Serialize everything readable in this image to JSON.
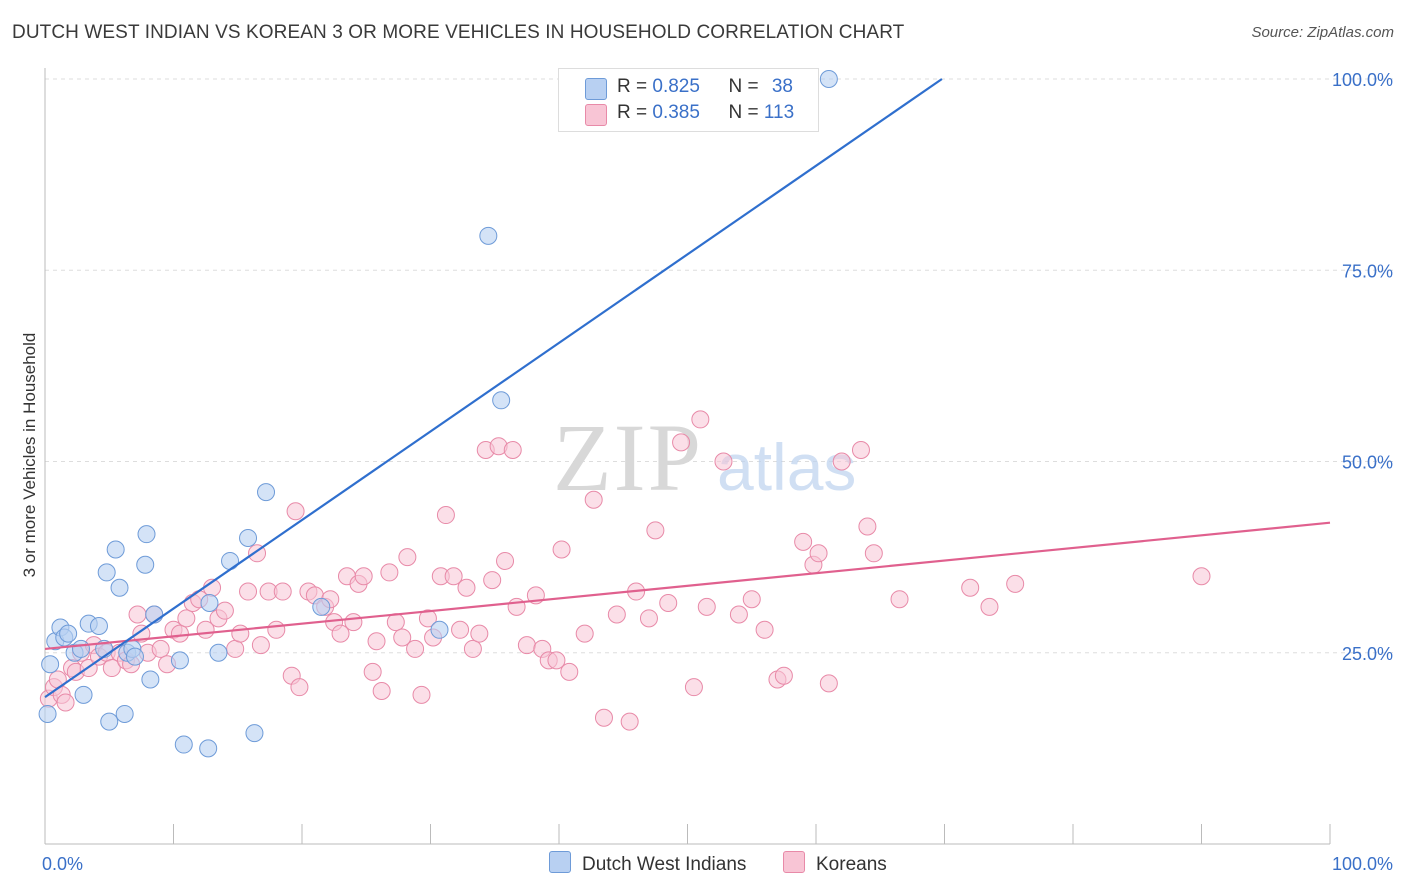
{
  "title": "DUTCH WEST INDIAN VS KOREAN 3 OR MORE VEHICLES IN HOUSEHOLD CORRELATION CHART",
  "source": "Source: ZipAtlas.com",
  "watermark": {
    "zip": "ZIP",
    "atlas": "atlas"
  },
  "colors": {
    "blue_fill": "#b8d0f2",
    "blue_stroke": "#6e9bd8",
    "blue_line": "#2f6fce",
    "pink_fill": "#f8c5d5",
    "pink_stroke": "#e88aa8",
    "pink_line": "#e0608e",
    "axis_text": "#3a70c8",
    "grid": "#dddddd"
  },
  "legend": {
    "rows": [
      {
        "r_label": "R = ",
        "r_value": "0.825",
        "n_label": "N = ",
        "n_value": "38"
      },
      {
        "r_label": "R = ",
        "r_value": "0.385",
        "n_label": "N = ",
        "n_value": "113"
      }
    ]
  },
  "bottom_legend": [
    "Dutch West Indians",
    "Koreans"
  ],
  "chart_data": {
    "type": "scatter",
    "title": "DUTCH WEST INDIAN VS KOREAN 3 OR MORE VEHICLES IN HOUSEHOLD CORRELATION CHART",
    "xlabel": "",
    "ylabel": "3 or more Vehicles in Household",
    "xlim": [
      0,
      100
    ],
    "ylim": [
      0,
      100
    ],
    "x_tick_labels": [
      "0.0%",
      "100.0%"
    ],
    "y_ticks": [
      25,
      50,
      75,
      100
    ],
    "y_tick_labels": [
      "25.0%",
      "50.0%",
      "75.0%",
      "100.0%"
    ],
    "grid": true,
    "legend_position": "top-center",
    "series": [
      {
        "name": "Dutch West Indians",
        "r": 0.825,
        "n": 38,
        "trend": {
          "x0": 0,
          "y0": 19.2,
          "x1": 69.8,
          "y1": 100
        },
        "points": [
          [
            0.2,
            17.0
          ],
          [
            0.4,
            23.5
          ],
          [
            0.8,
            26.5
          ],
          [
            1.2,
            28.3
          ],
          [
            1.5,
            27.0
          ],
          [
            1.8,
            27.5
          ],
          [
            2.3,
            25.0
          ],
          [
            2.8,
            25.5
          ],
          [
            3.0,
            19.5
          ],
          [
            3.4,
            28.8
          ],
          [
            4.2,
            28.5
          ],
          [
            4.6,
            25.5
          ],
          [
            4.8,
            35.5
          ],
          [
            5.0,
            16.0
          ],
          [
            5.5,
            38.5
          ],
          [
            5.8,
            33.5
          ],
          [
            6.2,
            17.0
          ],
          [
            6.4,
            25.0
          ],
          [
            6.8,
            25.5
          ],
          [
            7.0,
            24.5
          ],
          [
            7.8,
            36.5
          ],
          [
            7.9,
            40.5
          ],
          [
            8.2,
            21.5
          ],
          [
            8.5,
            30.0
          ],
          [
            10.5,
            24.0
          ],
          [
            10.8,
            13.0
          ],
          [
            12.7,
            12.5
          ],
          [
            12.8,
            31.5
          ],
          [
            13.5,
            25.0
          ],
          [
            14.4,
            37.0
          ],
          [
            15.8,
            40.0
          ],
          [
            16.3,
            14.5
          ],
          [
            17.2,
            46.0
          ],
          [
            21.5,
            31.0
          ],
          [
            30.7,
            28.0
          ],
          [
            34.5,
            79.5
          ],
          [
            35.5,
            58.0
          ],
          [
            61.0,
            100.0
          ]
        ]
      },
      {
        "name": "Koreans",
        "r": 0.385,
        "n": 113,
        "trend": {
          "x0": 0,
          "y0": 25.5,
          "x1": 100,
          "y1": 42.0
        },
        "points": [
          [
            0.3,
            19.0
          ],
          [
            0.7,
            20.5
          ],
          [
            1.0,
            21.5
          ],
          [
            1.3,
            19.5
          ],
          [
            1.6,
            18.5
          ],
          [
            2.1,
            23.0
          ],
          [
            2.4,
            22.5
          ],
          [
            2.8,
            25.0
          ],
          [
            3.4,
            23.0
          ],
          [
            3.8,
            26.0
          ],
          [
            4.2,
            24.5
          ],
          [
            4.8,
            25.0
          ],
          [
            5.2,
            23.0
          ],
          [
            5.8,
            25.0
          ],
          [
            6.3,
            24.0
          ],
          [
            6.7,
            23.5
          ],
          [
            7.2,
            30.0
          ],
          [
            7.5,
            27.5
          ],
          [
            8.0,
            25.0
          ],
          [
            8.5,
            30.0
          ],
          [
            9.0,
            25.5
          ],
          [
            9.5,
            23.5
          ],
          [
            10.0,
            28.0
          ],
          [
            10.5,
            27.5
          ],
          [
            11.0,
            29.5
          ],
          [
            11.5,
            31.5
          ],
          [
            12.0,
            32.0
          ],
          [
            12.5,
            28.0
          ],
          [
            13.0,
            33.5
          ],
          [
            13.5,
            29.5
          ],
          [
            14.0,
            30.5
          ],
          [
            14.8,
            25.5
          ],
          [
            15.2,
            27.5
          ],
          [
            15.8,
            33.0
          ],
          [
            16.5,
            38.0
          ],
          [
            16.8,
            26.0
          ],
          [
            17.4,
            33.0
          ],
          [
            18.0,
            28.0
          ],
          [
            18.5,
            33.0
          ],
          [
            19.2,
            22.0
          ],
          [
            19.5,
            43.5
          ],
          [
            19.8,
            20.5
          ],
          [
            20.5,
            33.0
          ],
          [
            21.0,
            32.5
          ],
          [
            21.8,
            31.0
          ],
          [
            22.2,
            32.0
          ],
          [
            22.5,
            29.0
          ],
          [
            23.0,
            27.5
          ],
          [
            23.5,
            35.0
          ],
          [
            24.0,
            29.0
          ],
          [
            24.4,
            34.0
          ],
          [
            24.8,
            35.0
          ],
          [
            25.5,
            22.5
          ],
          [
            25.8,
            26.5
          ],
          [
            26.2,
            20.0
          ],
          [
            26.8,
            35.5
          ],
          [
            27.3,
            29.0
          ],
          [
            27.8,
            27.0
          ],
          [
            28.2,
            37.5
          ],
          [
            28.8,
            25.5
          ],
          [
            29.3,
            19.5
          ],
          [
            29.8,
            29.5
          ],
          [
            30.2,
            27.0
          ],
          [
            30.8,
            35.0
          ],
          [
            31.2,
            43.0
          ],
          [
            31.8,
            35.0
          ],
          [
            32.3,
            28.0
          ],
          [
            32.8,
            33.5
          ],
          [
            33.3,
            25.5
          ],
          [
            33.8,
            27.5
          ],
          [
            34.3,
            51.5
          ],
          [
            34.8,
            34.5
          ],
          [
            35.3,
            52.0
          ],
          [
            35.8,
            37.0
          ],
          [
            36.4,
            51.5
          ],
          [
            36.7,
            31.0
          ],
          [
            37.5,
            26.0
          ],
          [
            38.2,
            32.5
          ],
          [
            38.7,
            25.5
          ],
          [
            39.2,
            24.0
          ],
          [
            39.8,
            24.0
          ],
          [
            40.2,
            38.5
          ],
          [
            40.8,
            22.5
          ],
          [
            42.0,
            27.5
          ],
          [
            42.7,
            45.0
          ],
          [
            43.5,
            16.5
          ],
          [
            44.5,
            30.0
          ],
          [
            45.5,
            16.0
          ],
          [
            46.0,
            33.0
          ],
          [
            47.0,
            29.5
          ],
          [
            47.5,
            41.0
          ],
          [
            48.5,
            31.5
          ],
          [
            49.5,
            52.5
          ],
          [
            50.5,
            20.5
          ],
          [
            51.0,
            55.5
          ],
          [
            51.5,
            31.0
          ],
          [
            52.8,
            50.0
          ],
          [
            54.0,
            30.0
          ],
          [
            55.0,
            32.0
          ],
          [
            56.0,
            28.0
          ],
          [
            57.0,
            21.5
          ],
          [
            57.5,
            22.0
          ],
          [
            59.0,
            39.5
          ],
          [
            59.8,
            36.5
          ],
          [
            60.2,
            38.0
          ],
          [
            61.0,
            21.0
          ],
          [
            62.0,
            50.0
          ],
          [
            63.5,
            51.5
          ],
          [
            64.0,
            41.5
          ],
          [
            64.5,
            38.0
          ],
          [
            66.5,
            32.0
          ],
          [
            72.0,
            33.5
          ],
          [
            73.5,
            31.0
          ],
          [
            75.5,
            34.0
          ],
          [
            90.0,
            35.0
          ]
        ]
      }
    ]
  }
}
